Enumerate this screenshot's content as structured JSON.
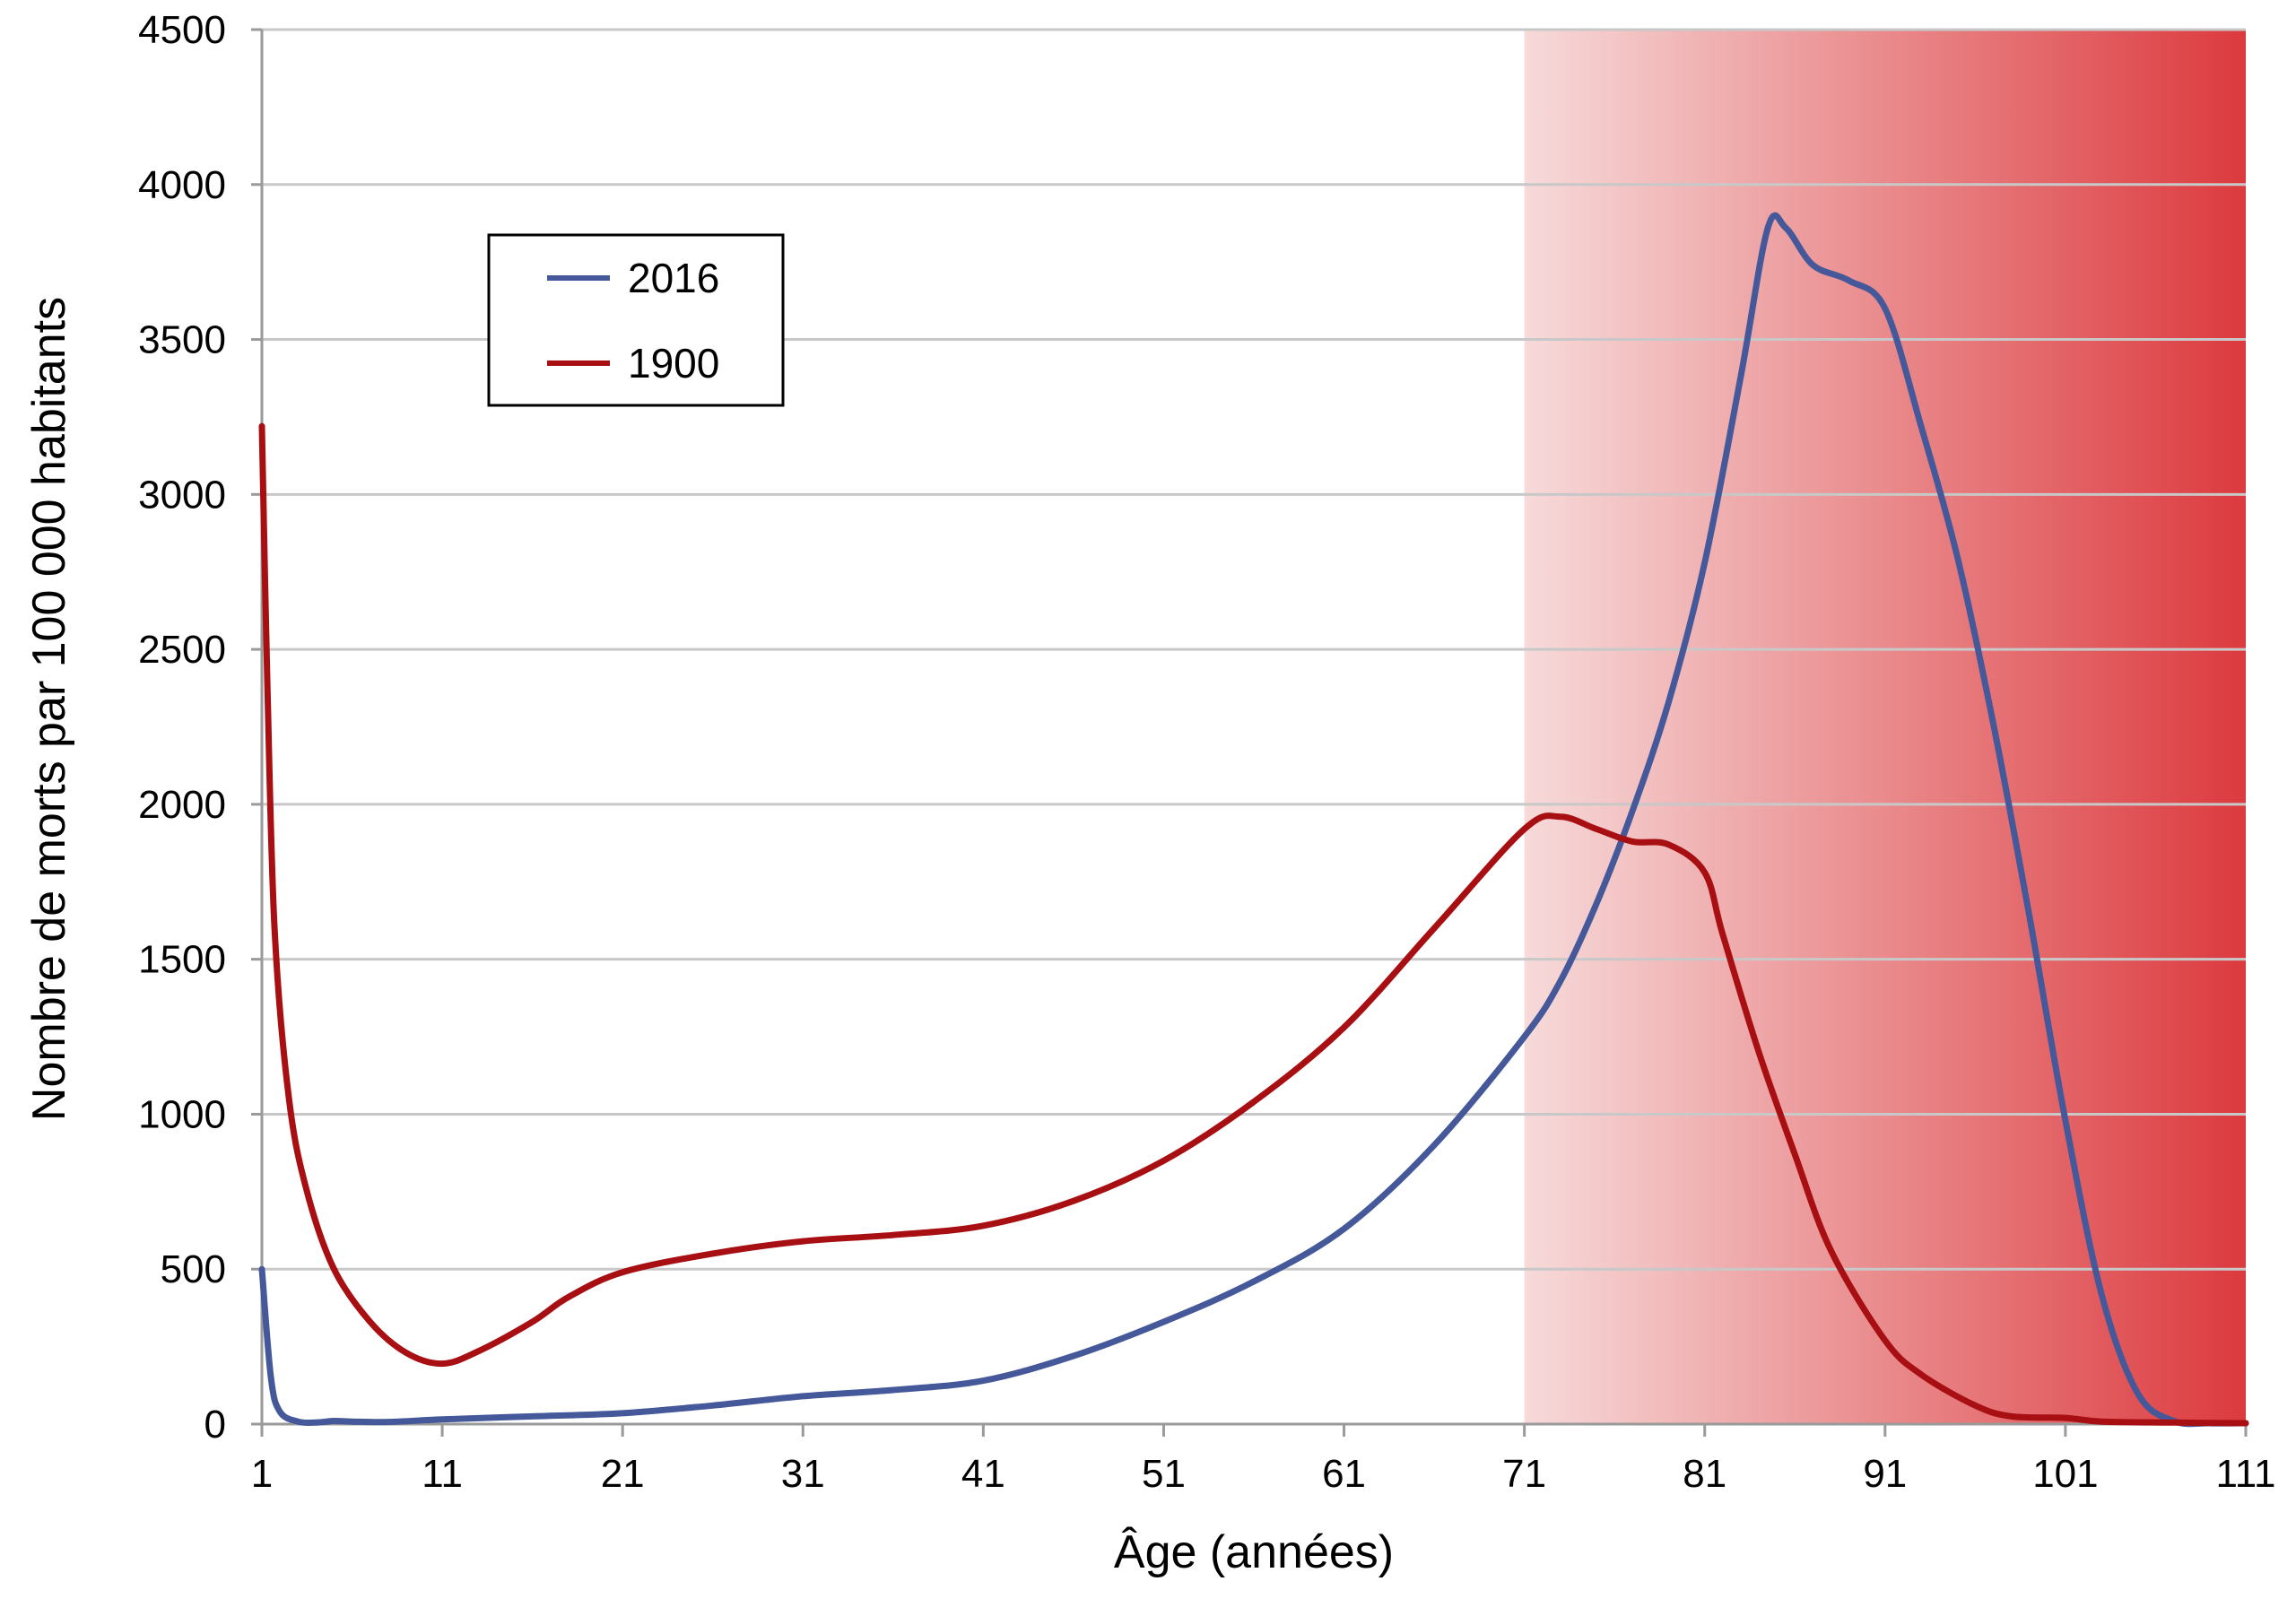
{
  "chart_data": {
    "type": "line",
    "title": "",
    "xlabel": "Âge (années)",
    "ylabel": "Nombre de morts par 100 000 habitants",
    "xlim": [
      1,
      111
    ],
    "ylim": [
      0,
      4500
    ],
    "x_ticks": [
      1,
      11,
      21,
      31,
      41,
      51,
      61,
      71,
      81,
      91,
      101,
      111
    ],
    "y_ticks": [
      0,
      500,
      1000,
      1500,
      2000,
      2500,
      3000,
      3500,
      4000,
      4500
    ],
    "grid": "horizontal",
    "legend_position": "top-left",
    "shaded_region": {
      "x_from": 71,
      "x_to": 111,
      "gradient_colors": [
        "#f7dada",
        "#dc3a3e"
      ]
    },
    "series": [
      {
        "name": "2016",
        "color": "#44589a",
        "points": [
          [
            1,
            500
          ],
          [
            1.5,
            150
          ],
          [
            2,
            40
          ],
          [
            3,
            8
          ],
          [
            4,
            5
          ],
          [
            5,
            10
          ],
          [
            6,
            8
          ],
          [
            8,
            7
          ],
          [
            11,
            15
          ],
          [
            16,
            25
          ],
          [
            21,
            35
          ],
          [
            26,
            60
          ],
          [
            31,
            90
          ],
          [
            36,
            110
          ],
          [
            41,
            140
          ],
          [
            46,
            220
          ],
          [
            51,
            330
          ],
          [
            56,
            460
          ],
          [
            61,
            630
          ],
          [
            66,
            900
          ],
          [
            71,
            1250
          ],
          [
            73,
            1430
          ],
          [
            75,
            1680
          ],
          [
            77,
            1980
          ],
          [
            79,
            2330
          ],
          [
            81,
            2780
          ],
          [
            83,
            3380
          ],
          [
            84.5,
            3860
          ],
          [
            85.5,
            3860
          ],
          [
            87,
            3740
          ],
          [
            89,
            3690
          ],
          [
            91,
            3600
          ],
          [
            93,
            3220
          ],
          [
            95,
            2800
          ],
          [
            97,
            2260
          ],
          [
            99,
            1640
          ],
          [
            101,
            980
          ],
          [
            103,
            420
          ],
          [
            105,
            100
          ],
          [
            107,
            10
          ],
          [
            109,
            3
          ],
          [
            111,
            3
          ]
        ]
      },
      {
        "name": "1900",
        "color": "#a80f12",
        "points": [
          [
            1,
            3220
          ],
          [
            1.3,
            2400
          ],
          [
            1.7,
            1600
          ],
          [
            2.5,
            1050
          ],
          [
            3.5,
            750
          ],
          [
            5,
            500
          ],
          [
            7,
            330
          ],
          [
            9,
            230
          ],
          [
            11,
            195
          ],
          [
            13,
            235
          ],
          [
            16,
            330
          ],
          [
            18,
            410
          ],
          [
            21,
            490
          ],
          [
            26,
            550
          ],
          [
            31,
            590
          ],
          [
            36,
            610
          ],
          [
            41,
            640
          ],
          [
            46,
            720
          ],
          [
            51,
            850
          ],
          [
            56,
            1040
          ],
          [
            61,
            1280
          ],
          [
            66,
            1600
          ],
          [
            71,
            1920
          ],
          [
            73,
            1960
          ],
          [
            75,
            1920
          ],
          [
            77,
            1880
          ],
          [
            79,
            1870
          ],
          [
            81,
            1780
          ],
          [
            82,
            1580
          ],
          [
            84,
            1200
          ],
          [
            86,
            870
          ],
          [
            88,
            560
          ],
          [
            91,
            270
          ],
          [
            93,
            160
          ],
          [
            96,
            60
          ],
          [
            98,
            25
          ],
          [
            101,
            20
          ],
          [
            103,
            8
          ],
          [
            107,
            5
          ],
          [
            111,
            3
          ]
        ]
      }
    ]
  }
}
